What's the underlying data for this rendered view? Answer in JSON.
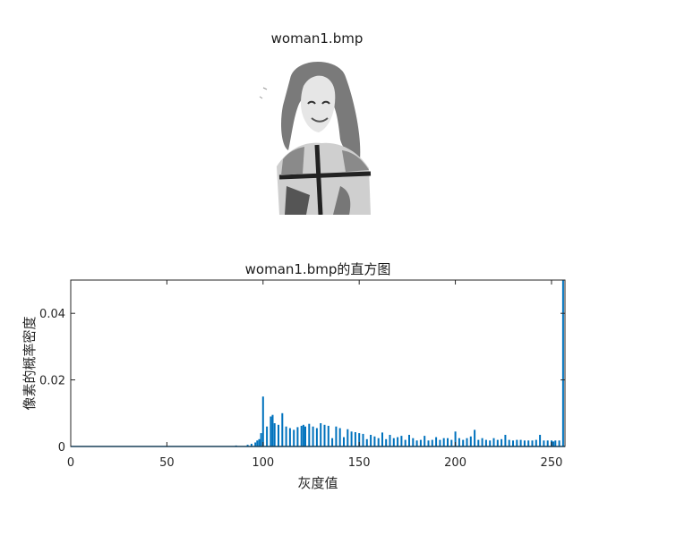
{
  "image_panel": {
    "title": "woman1.bmp"
  },
  "chart_data": {
    "type": "bar",
    "title": "woman1.bmp的直方图",
    "xlabel": "灰度值",
    "ylabel": "像素的概率密度",
    "xlim": [
      0,
      257
    ],
    "ylim": [
      0,
      0.05
    ],
    "xticks": [
      0,
      50,
      100,
      150,
      200,
      250
    ],
    "yticks": [
      0,
      0.02,
      0.04
    ],
    "ytick_labels": [
      "0",
      "0.02",
      "0.04"
    ],
    "grid": false,
    "color": "#0072bd",
    "x": [
      86,
      92,
      94,
      96,
      97,
      98,
      99,
      100,
      102,
      104,
      105,
      106,
      108,
      110,
      112,
      114,
      116,
      118,
      120,
      121,
      122,
      124,
      126,
      128,
      130,
      132,
      134,
      136,
      138,
      140,
      142,
      144,
      146,
      148,
      150,
      152,
      154,
      156,
      158,
      160,
      162,
      164,
      166,
      168,
      170,
      172,
      174,
      176,
      178,
      180,
      182,
      184,
      186,
      188,
      190,
      192,
      194,
      196,
      198,
      200,
      202,
      204,
      206,
      208,
      210,
      212,
      214,
      216,
      218,
      220,
      222,
      224,
      226,
      228,
      230,
      232,
      234,
      236,
      238,
      240,
      242,
      244,
      246,
      248,
      250,
      251,
      252,
      254,
      256
    ],
    "values": [
      0.0003,
      0.0005,
      0.0008,
      0.0012,
      0.0018,
      0.0022,
      0.004,
      0.015,
      0.006,
      0.009,
      0.0095,
      0.007,
      0.0065,
      0.01,
      0.006,
      0.0055,
      0.005,
      0.0058,
      0.0062,
      0.0065,
      0.006,
      0.0068,
      0.006,
      0.0055,
      0.007,
      0.0065,
      0.0062,
      0.0025,
      0.006,
      0.0055,
      0.0028,
      0.0052,
      0.0045,
      0.0043,
      0.004,
      0.0038,
      0.0022,
      0.0035,
      0.003,
      0.0025,
      0.0042,
      0.0022,
      0.0035,
      0.0025,
      0.0028,
      0.0032,
      0.002,
      0.0035,
      0.0025,
      0.0018,
      0.002,
      0.0032,
      0.0018,
      0.002,
      0.0028,
      0.002,
      0.0025,
      0.0025,
      0.002,
      0.0045,
      0.0025,
      0.002,
      0.0025,
      0.003,
      0.005,
      0.002,
      0.0025,
      0.002,
      0.0018,
      0.0025,
      0.002,
      0.0022,
      0.0035,
      0.002,
      0.0018,
      0.002,
      0.002,
      0.0018,
      0.0018,
      0.0018,
      0.002,
      0.0035,
      0.0018,
      0.0018,
      0.0018,
      0.0015,
      0.0018,
      0.0018,
      0.06
    ]
  }
}
